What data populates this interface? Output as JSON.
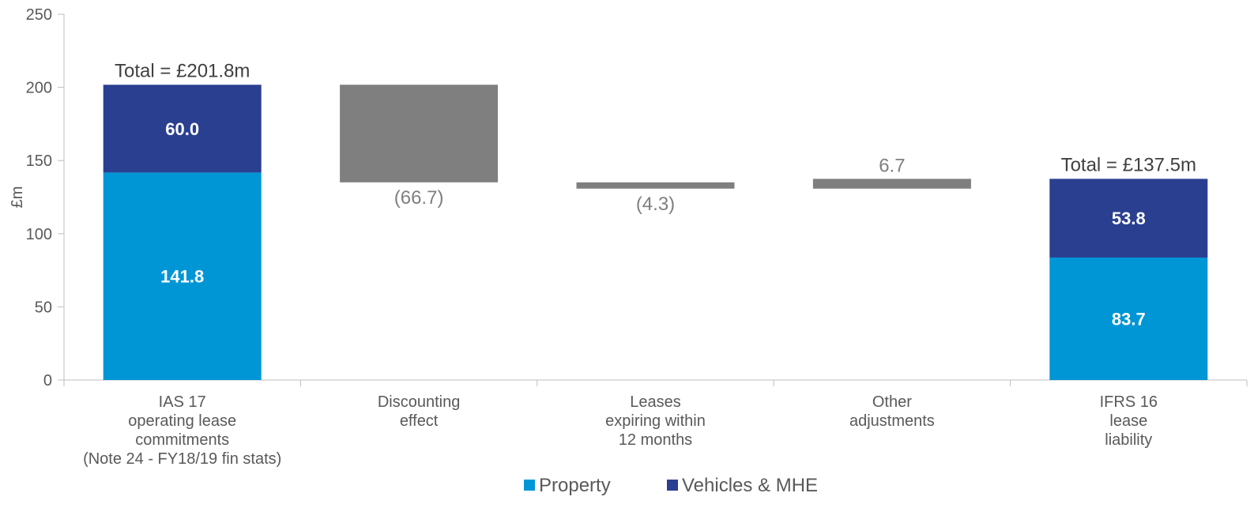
{
  "chart_data": {
    "type": "bar",
    "subtype": "waterfall",
    "ylabel": "£m",
    "ylim": [
      0,
      250
    ],
    "yticks": [
      0,
      50,
      100,
      150,
      200,
      250
    ],
    "grid": false,
    "legend_position": "bottom",
    "categories": [
      [
        "IAS 17",
        "operating lease",
        "commitments",
        "(Note 24 - FY18/19 fin stats)"
      ],
      [
        "Discounting",
        "effect"
      ],
      [
        "Leases",
        "expiring within",
        "12 months"
      ],
      [
        "Other",
        "adjustments"
      ],
      [
        "IFRS 16",
        "lease",
        "liability"
      ]
    ],
    "series": [
      {
        "name": "Property",
        "color": "#0096d6",
        "values": [
          141.8,
          null,
          null,
          null,
          83.7
        ]
      },
      {
        "name": "Vehicles & MHE",
        "color": "#2b3f91",
        "values": [
          60.0,
          null,
          null,
          null,
          53.8
        ]
      }
    ],
    "bridge": {
      "color": "#7f7f7f",
      "items": [
        {
          "index": 1,
          "start": 201.8,
          "end": 135.1,
          "label": "(66.7)",
          "label_pos": "below"
        },
        {
          "index": 2,
          "start": 135.1,
          "end": 130.8,
          "label": "(4.3)",
          "label_pos": "below"
        },
        {
          "index": 3,
          "start": 130.8,
          "end": 137.5,
          "label": "6.7",
          "label_pos": "above"
        }
      ]
    },
    "totals": [
      {
        "index": 0,
        "value": 201.8,
        "label": "Total = £201.8m"
      },
      {
        "index": 4,
        "value": 137.5,
        "label": "Total = £137.5m"
      }
    ]
  }
}
